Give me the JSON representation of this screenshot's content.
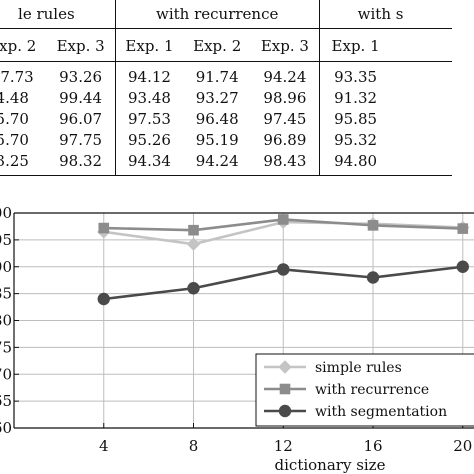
{
  "table": {
    "groups": [
      "le rules",
      "with recurrence",
      "with s"
    ],
    "subheaders": [
      "Exp. 2",
      "Exp. 3",
      "Exp. 1",
      "Exp. 2",
      "Exp. 3",
      "Exp. 1"
    ],
    "rows": [
      [
        "97.73",
        "93.26",
        "94.12",
        "91.74",
        "94.24",
        "93.35"
      ],
      [
        "4.48",
        "99.44",
        "93.48",
        "93.27",
        "98.96",
        "91.32"
      ],
      [
        "5.70",
        "96.07",
        "97.53",
        "96.48",
        "97.45",
        "95.85"
      ],
      [
        "5.70",
        "97.75",
        "95.26",
        "95.19",
        "96.89",
        "95.32"
      ],
      [
        "3.25",
        "98.32",
        "94.34",
        "94.24",
        "98.43",
        "94.80"
      ]
    ]
  },
  "chart_data": {
    "type": "line",
    "xlabel": "dictionary size",
    "x": [
      4,
      8,
      12,
      16,
      20
    ],
    "x_tick_labels": [
      "4",
      "8",
      "12",
      "16",
      "20"
    ],
    "xlim": [
      0,
      20.5
    ],
    "y_tick_labels": [
      "00",
      "95",
      "90",
      "85",
      "80",
      "75",
      "70",
      "65",
      "60"
    ],
    "ylim": [
      60,
      100
    ],
    "grid": true,
    "legend_position": "bottom-right",
    "series": [
      {
        "name": "simple rules",
        "values": [
          96.5,
          94.2,
          98.3,
          98.0,
          97.3
        ],
        "color": "#c4c4c4",
        "marker": "diamond"
      },
      {
        "name": "with recurrence",
        "values": [
          97.2,
          96.8,
          98.8,
          97.7,
          97.1
        ],
        "color": "#8c8c8c",
        "marker": "square"
      },
      {
        "name": "with segmentation",
        "values": [
          84.0,
          86.0,
          89.5,
          88.0,
          90.0
        ],
        "color": "#4a4a4a",
        "marker": "circle"
      }
    ]
  }
}
